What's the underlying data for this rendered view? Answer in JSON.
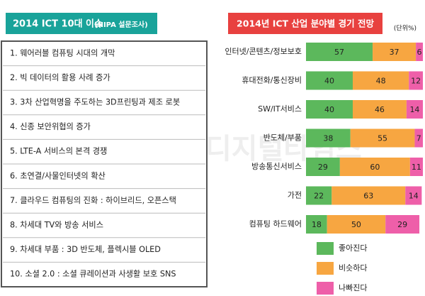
{
  "issues": {
    "title": "2014 ICT 10대 이슈",
    "subtitle": "(NIPA 설문조사)",
    "items": [
      "1. 웨어러블 컴퓨팅 시대의 개막",
      "2. 빅 데이터의 활용 사례 증가",
      "3. 3차 산업혁명을 주도하는 3D프린팅과 제조 로봇",
      "4. 신종 보안위협의 증가",
      "5. LTE-A 서비스의 본격 경쟁",
      "6. 초연결/사물인터넷의 확산",
      "7. 클라우드 컴퓨팅의 진화 : 하이브리드, 오픈스택",
      "8. 차세대 TV와 방송 서비스",
      "9. 차세대 부품 : 3D 반도체, 플렉시블 OLED",
      "10. 소셜 2.0 : 소셜 큐레이션과 사생활 보호 SNS"
    ]
  },
  "watermark": "디지털타임스",
  "chart_data": {
    "type": "stacked-bar",
    "orientation": "horizontal",
    "title": "2014년 ICT 산업 분야별 경기 전망",
    "unit": "(단위%)",
    "categories": [
      "인터넷/콘텐츠/정보보호",
      "휴대전화/통신장비",
      "SW/IT서비스",
      "반도체/부품",
      "방송통신서비스",
      "가전",
      "컴퓨팅 하드웨어"
    ],
    "series": [
      {
        "name": "좋아진다",
        "color": "#5cb85c",
        "values": [
          57,
          40,
          40,
          38,
          29,
          22,
          18
        ]
      },
      {
        "name": "비슷하다",
        "color": "#f7a641",
        "values": [
          37,
          48,
          46,
          55,
          60,
          63,
          50
        ]
      },
      {
        "name": "나빠진다",
        "color": "#ee5fa9",
        "values": [
          6,
          12,
          14,
          7,
          11,
          14,
          29
        ]
      }
    ]
  }
}
